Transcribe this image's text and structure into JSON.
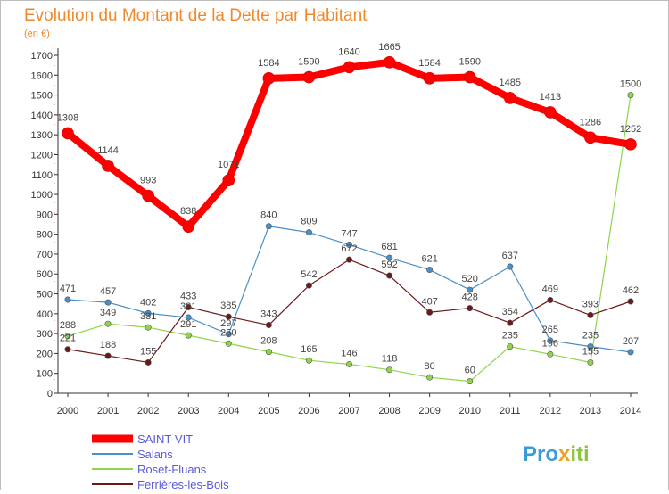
{
  "chart_data": {
    "type": "line",
    "title": "Evolution du Montant de la Dette par Habitant",
    "subtitle": "(en €)",
    "xlabel": "",
    "ylabel": "",
    "ylim": [
      0,
      1700
    ],
    "yticks": [
      0,
      100,
      200,
      300,
      400,
      500,
      600,
      700,
      800,
      900,
      1000,
      1100,
      1200,
      1300,
      1400,
      1500,
      1600,
      1700
    ],
    "x": [
      "2000",
      "2001",
      "2002",
      "2003",
      "2004",
      "2005",
      "2006",
      "2007",
      "2008",
      "2009",
      "2010",
      "2011",
      "2012",
      "2013",
      "2014"
    ],
    "grid": false,
    "legend_position": "bottom-left",
    "series": [
      {
        "name": "SAINT-VIT",
        "color": "#ff0000",
        "values": [
          1308,
          1144,
          993,
          838,
          1071,
          1584,
          1590,
          1640,
          1665,
          1584,
          1590,
          1485,
          1413,
          1286,
          1252
        ]
      },
      {
        "name": "Salans",
        "color": "#4a90c8",
        "values": [
          471,
          457,
          402,
          381,
          297,
          840,
          809,
          747,
          681,
          621,
          520,
          637,
          265,
          235,
          207
        ]
      },
      {
        "name": "Roset-Fluans",
        "color": "#8fd44a",
        "values": [
          288,
          349,
          331,
          291,
          250,
          208,
          165,
          146,
          118,
          80,
          60,
          235,
          196,
          155,
          1500
        ]
      },
      {
        "name": "Ferrières-les-Bois",
        "color": "#6b1a1a",
        "values": [
          221,
          188,
          155,
          433,
          385,
          343,
          542,
          672,
          592,
          407,
          428,
          354,
          469,
          393,
          462
        ]
      }
    ]
  },
  "brand": {
    "prefix": "Pro",
    "x": "x",
    "suffix": "iti"
  }
}
